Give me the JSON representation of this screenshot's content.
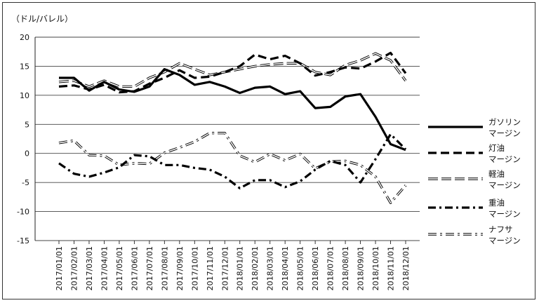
{
  "chart_data": {
    "type": "line",
    "unit_label": "（ドル/バレル）",
    "ylim": [
      -15,
      20
    ],
    "yticks": [
      20,
      15,
      10,
      5,
      0,
      -5,
      -10,
      -15
    ],
    "grid": "horizontal",
    "legend_position": "right",
    "x": [
      "2017/01/01",
      "2017/02/01",
      "2017/03/01",
      "2017/04/01",
      "2017/05/01",
      "2017/06/01",
      "2017/07/01",
      "2017/08/01",
      "2017/09/01",
      "2017/10/01",
      "2017/11/01",
      "2017/12/01",
      "2018/01/01",
      "2018/02/01",
      "2018/03/01",
      "2018/04/01",
      "2018/05/01",
      "2018/06/01",
      "2018/07/01",
      "2018/08/01",
      "2018/09/01",
      "2018/10/01",
      "2018/11/01",
      "2018/12/01"
    ],
    "series": [
      {
        "name": "ガソリン\nマージン",
        "style": "solid",
        "values": [
          13.0,
          13.0,
          10.8,
          12.3,
          11.0,
          10.6,
          11.5,
          14.5,
          13.5,
          11.8,
          12.3,
          11.5,
          10.4,
          11.3,
          11.5,
          10.2,
          10.7,
          7.8,
          8.0,
          9.8,
          10.2,
          6.3,
          1.6,
          0.6
        ]
      },
      {
        "name": "灯油\nマージン",
        "style": "dash",
        "values": [
          11.5,
          11.7,
          11.0,
          11.8,
          10.5,
          10.7,
          12.0,
          13.0,
          14.3,
          13.0,
          13.2,
          14.0,
          15.0,
          17.0,
          16.2,
          16.8,
          15.5,
          13.4,
          14.0,
          14.8,
          14.6,
          15.8,
          17.3,
          13.8
        ]
      },
      {
        "name": "軽油\nマージン",
        "style": "double-line",
        "values": [
          12.3,
          12.5,
          11.5,
          12.5,
          11.5,
          11.5,
          13.0,
          14.0,
          15.5,
          14.5,
          13.5,
          14.0,
          14.5,
          15.0,
          15.3,
          15.5,
          15.5,
          14.0,
          13.5,
          15.2,
          16.0,
          17.2,
          16.0,
          12.5
        ]
      },
      {
        "name": "重油\nマージン",
        "style": "dash-dot",
        "values": [
          -1.7,
          -3.5,
          -4.0,
          -3.3,
          -2.4,
          -0.3,
          -0.5,
          -2.0,
          -2.0,
          -2.5,
          -2.8,
          -4.0,
          -6.0,
          -4.6,
          -4.6,
          -5.8,
          -4.8,
          -2.8,
          -1.3,
          -2.0,
          -5.0,
          -1.0,
          3.3,
          0.7
        ]
      },
      {
        "name": "ナフサ\nマージン",
        "style": "double-dash-dot",
        "values": [
          1.8,
          2.2,
          -0.3,
          -0.4,
          -2.0,
          -1.7,
          -1.8,
          0.1,
          1.0,
          2.0,
          3.5,
          3.5,
          -0.4,
          -1.5,
          -0.1,
          -1.2,
          -0.1,
          -2.6,
          -1.4,
          -1.3,
          -2.0,
          -4.0,
          -8.5,
          -5.5
        ]
      }
    ]
  }
}
